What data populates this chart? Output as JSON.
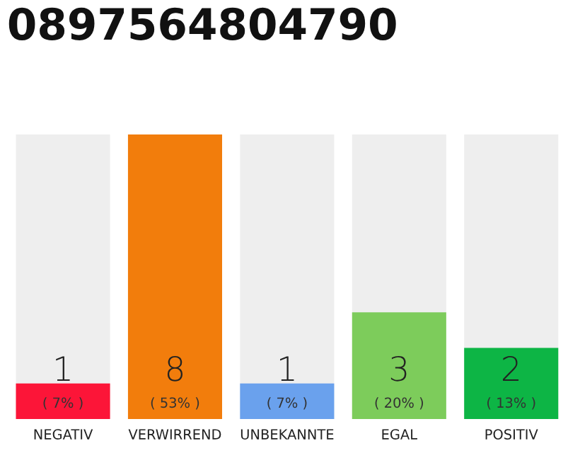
{
  "chart_data": {
    "type": "bar",
    "title": "0897564804790",
    "categories": [
      "NEGATIV",
      "VERWIRREND",
      "UNBEKANNTE",
      "EGAL",
      "POSITIV"
    ],
    "values": [
      1,
      8,
      1,
      3,
      2
    ],
    "colors": [
      "#fc1538",
      "#f27d0c",
      "#6aa1ed",
      "#7dcc5b",
      "#0db545"
    ],
    "ylim": [
      0,
      8
    ],
    "tick_labels": "x",
    "data_labels": true,
    "grid": false,
    "legend": false,
    "annotations": [
      {
        "text": "( 7% )",
        "x": "NEGATIV",
        "y": 0
      },
      {
        "text": "( 53% )",
        "x": "VERWIRREND",
        "y": 0
      },
      {
        "text": "( 7% )",
        "x": "UNBEKANNTE",
        "y": 0
      },
      {
        "text": "( 20% )",
        "x": "EGAL",
        "y": 0
      },
      {
        "text": "( 13% )",
        "x": "POSITIV",
        "y": 0
      }
    ]
  }
}
